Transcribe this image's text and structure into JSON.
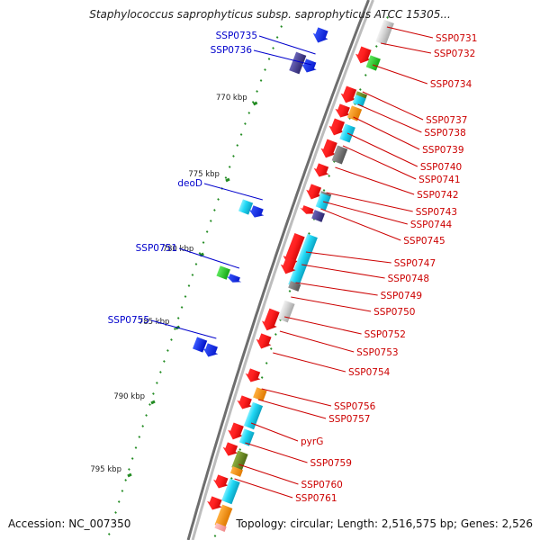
{
  "map": {
    "title": "Staphylococcus saprophyticus subsp. saprophyticus ATCC 15305...",
    "accession": "Accession: NC_007350",
    "topology": "Topology: circular; Length: 2,516,575 bp; Genes: 2,526",
    "colors": {
      "backbone": "#8c8c8c",
      "label_red": "#cc0000",
      "label_blue": "#0000cc",
      "tick": "#228b22"
    },
    "ruler_labels": [
      "770 kbp",
      "775 kbp",
      "780 kbp",
      "785 kbp",
      "790 kbp",
      "795 kbp"
    ],
    "right_labels": [
      "SSP0731",
      "SSP0732",
      "SSP0734",
      "SSP0737",
      "SSP0738",
      "SSP0739",
      "SSP0740",
      "SSP0741",
      "SSP0742",
      "SSP0743",
      "SSP0744",
      "SSP0745",
      "SSP0747",
      "SSP0748",
      "SSP0749",
      "SSP0750",
      "SSP0752",
      "SSP0753",
      "SSP0754",
      "SSP0756",
      "SSP0757",
      "pyrG",
      "SSP0759",
      "SSP0760",
      "SSP0761"
    ],
    "left_labels": [
      "SSP0735",
      "SSP0736",
      "deoD",
      "SSP0751",
      "SSP0755"
    ]
  }
}
